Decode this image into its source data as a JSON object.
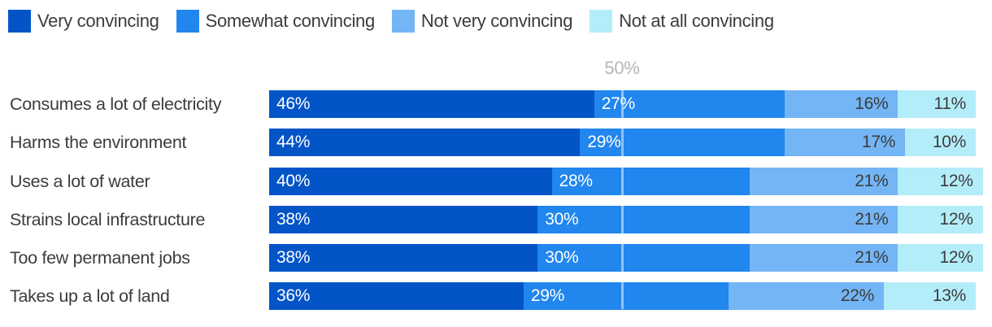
{
  "legend": {
    "items": [
      {
        "label": "Very convincing",
        "color": "#0355C7"
      },
      {
        "label": "Somewhat convincing",
        "color": "#2186ED"
      },
      {
        "label": "Not very convincing",
        "color": "#73B5F5"
      },
      {
        "label": "Not at all convincing",
        "color": "#B4EDFA"
      }
    ]
  },
  "axis": {
    "tick_label": "50%",
    "tick_value": 50
  },
  "chart_data": {
    "type": "bar",
    "orientation": "horizontal",
    "stacked": true,
    "xlim": [
      0,
      100
    ],
    "grid": "single vertical line at 50%",
    "legend_position": "top",
    "title": "",
    "categories": [
      "Consumes a lot of electricity",
      "Harms the environment",
      "Uses a lot of water",
      "Strains local infrastructure",
      "Too few permanent jobs",
      "Takes up a lot of land"
    ],
    "series": [
      {
        "name": "Very convincing",
        "color": "#0355C7",
        "values": [
          46,
          44,
          40,
          38,
          38,
          36
        ]
      },
      {
        "name": "Somewhat convincing",
        "color": "#2186ED",
        "values": [
          27,
          29,
          28,
          30,
          30,
          29
        ]
      },
      {
        "name": "Not very convincing",
        "color": "#73B5F5",
        "values": [
          16,
          17,
          21,
          21,
          21,
          22
        ]
      },
      {
        "name": "Not at all convincing",
        "color": "#B4EDFA",
        "values": [
          11,
          10,
          12,
          12,
          12,
          13
        ]
      }
    ],
    "rows": [
      {
        "label": "Consumes a lot of electricity",
        "values": [
          46,
          27,
          16,
          11
        ],
        "display": [
          "46%",
          "27%",
          "16%",
          "11%"
        ]
      },
      {
        "label": "Harms the environment",
        "values": [
          44,
          29,
          17,
          10
        ],
        "display": [
          "44%",
          "29%",
          "17%",
          "10%"
        ]
      },
      {
        "label": "Uses a lot of water",
        "values": [
          40,
          28,
          21,
          12
        ],
        "display": [
          "40%",
          "28%",
          "21%",
          "12%"
        ]
      },
      {
        "label": "Strains local infrastructure",
        "values": [
          38,
          30,
          21,
          12
        ],
        "display": [
          "38%",
          "30%",
          "21%",
          "12%"
        ]
      },
      {
        "label": "Too few permanent jobs",
        "values": [
          38,
          30,
          21,
          12
        ],
        "display": [
          "38%",
          "30%",
          "21%",
          "12%"
        ]
      },
      {
        "label": "Takes up a lot of land",
        "values": [
          36,
          29,
          22,
          13
        ],
        "display": [
          "36%",
          "29%",
          "22%",
          "13%"
        ]
      }
    ]
  }
}
